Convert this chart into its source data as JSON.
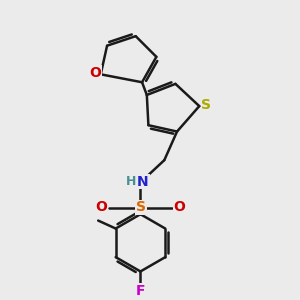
{
  "background_color": "#ebebeb",
  "bond_color": "#1a1a1a",
  "atom_colors": {
    "O": "#cc0000",
    "S_thio": "#aaaa00",
    "N": "#2222cc",
    "S_sulf": "#dd6600",
    "F": "#cc00cc",
    "H": "#4a9090",
    "C": "#1a1a1a"
  },
  "line_width": 1.8,
  "font_size": 10
}
